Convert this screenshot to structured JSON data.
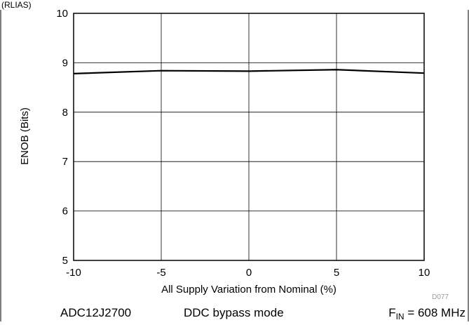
{
  "header_fragment": "(RLIAS)",
  "chart_data": {
    "type": "line",
    "title": "",
    "xlabel": "All Supply Variation from Nominal (%)",
    "ylabel": "ENOB (Bits)",
    "xlim": [
      -10,
      10
    ],
    "ylim": [
      5,
      10
    ],
    "x_ticks": [
      "-10",
      "-5",
      "0",
      "5",
      "10"
    ],
    "y_ticks": [
      "5",
      "6",
      "7",
      "8",
      "9",
      "10"
    ],
    "grid": true,
    "series": [
      {
        "x": [
          -10,
          -5,
          0,
          5,
          10
        ],
        "y": [
          8.78,
          8.84,
          8.83,
          8.86,
          8.79
        ]
      }
    ],
    "figure_code": "D077"
  },
  "caption": {
    "device": "ADC12J2700",
    "mode": "DDC bypass mode",
    "fin_prefix": "F",
    "fin_sub": "IN",
    "fin_value": " = 608 MHz"
  },
  "colors": {
    "line": "#000000",
    "grid": "#000000",
    "frame": "#000000"
  }
}
